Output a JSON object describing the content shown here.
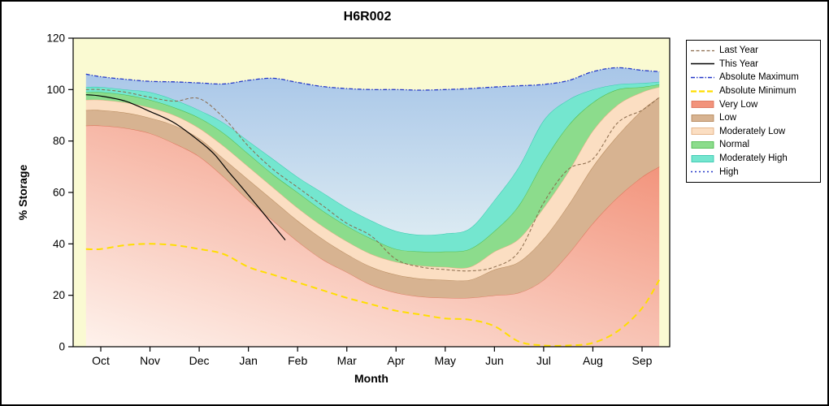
{
  "title": "H6R002",
  "axes": {
    "x_label": "Month",
    "y_label": "% Storage",
    "y_ticks": [
      0,
      20,
      40,
      60,
      80,
      100,
      120
    ]
  },
  "colors": {
    "plot_bg": "#FAFAD2",
    "axis": "#000000"
  },
  "legend": {
    "position": "right",
    "items": [
      {
        "label": "Last Year",
        "type": "line",
        "color": "#8A6A4B",
        "dash": "4,2.5",
        "width": 1
      },
      {
        "label": "This Year",
        "type": "line",
        "color": "#000000",
        "dash": "",
        "width": 1.2
      },
      {
        "label": "Absolute Maximum",
        "type": "line",
        "color": "#2438C8",
        "dash": "5,2,1.5,2",
        "width": 1.3
      },
      {
        "label": "Absolute Minimum",
        "type": "line",
        "color": "#FFDE00",
        "dash": "7,3",
        "width": 2
      },
      {
        "label": "Very Low",
        "type": "fill",
        "color": "#F2937B",
        "edge": "#D96A50"
      },
      {
        "label": "Low",
        "type": "fill",
        "color": "#D7B391",
        "edge": "#B08050"
      },
      {
        "label": "Moderately Low",
        "type": "fill",
        "color": "#FBDEC2",
        "edge": "#E0A878"
      },
      {
        "label": "Normal",
        "type": "fill",
        "color": "#8CDC8C",
        "edge": "#3FB53F"
      },
      {
        "label": "Moderately High",
        "type": "fill",
        "color": "#74E6CF",
        "edge": "#2BC4AA"
      },
      {
        "label": "High",
        "type": "line",
        "color": "#2438C8",
        "dash": "2,3",
        "width": 1.3
      }
    ]
  },
  "chart_data": {
    "type": "area",
    "title": "H6R002",
    "xlabel": "Month",
    "ylabel": "% Storage",
    "ylim": [
      0,
      120
    ],
    "grid": false,
    "legend_position": "right",
    "categories": [
      "Oct",
      "Nov",
      "Dec",
      "Jan",
      "Feb",
      "Mar",
      "Apr",
      "May",
      "Jun",
      "Jul",
      "Aug",
      "Sep"
    ],
    "x": [
      -0.3,
      0,
      0.5,
      1,
      1.5,
      2,
      2.5,
      3,
      3.5,
      4,
      4.5,
      5,
      5.5,
      6,
      6.5,
      7,
      7.5,
      8,
      8.5,
      9,
      9.5,
      10,
      10.5,
      11,
      11.35
    ],
    "bands": [
      {
        "name": "Very Low",
        "fill": "#F2937B",
        "fill2": "#FEF2EC",
        "grad": "diag",
        "edge": "#D96A50",
        "top": [
          86,
          86,
          85,
          83,
          79,
          74,
          66,
          57,
          49,
          41,
          34,
          29,
          24,
          21,
          19.5,
          19,
          19,
          20,
          21,
          26,
          36,
          48,
          58,
          66,
          70
        ]
      },
      {
        "name": "Low",
        "fill": "#D7B391",
        "edge": "#B08050",
        "top": [
          92,
          92,
          91,
          89,
          86,
          81,
          73,
          65,
          57,
          49,
          42,
          36,
          31,
          28,
          26.5,
          26,
          26,
          30,
          33,
          42,
          55,
          70,
          82,
          92,
          97
        ]
      },
      {
        "name": "Moderately Low",
        "fill": "#FBDEC2",
        "edge": "#E0A878",
        "top": [
          96,
          96,
          95,
          93,
          90,
          85,
          78,
          70,
          62,
          54,
          47,
          41,
          36,
          33,
          31.5,
          31,
          31,
          37,
          42,
          54,
          68,
          84,
          94,
          99,
          101
        ]
      },
      {
        "name": "Normal",
        "fill": "#8CDC8C",
        "edge": "#3FB53F",
        "top": [
          99,
          99,
          98,
          96,
          93,
          89,
          83,
          75,
          67,
          60,
          53,
          47,
          42,
          38,
          37,
          37,
          38,
          45,
          55,
          72,
          86,
          95,
          100,
          101,
          102
        ]
      },
      {
        "name": "Moderately High",
        "fill": "#74E6CF",
        "edge": "#2BC4AA",
        "top": [
          101,
          101,
          100,
          99,
          96,
          92,
          87,
          80,
          73,
          66,
          60,
          54,
          49,
          45,
          43.5,
          44,
          46,
          57,
          70,
          88,
          96,
          100,
          102,
          102.5,
          103
        ]
      },
      {
        "name": "High",
        "fill": "#A8C6E8",
        "fill2": "#DBEAF2",
        "grad": "vert",
        "edge": "",
        "top": [
          106,
          105,
          104,
          103.2,
          103,
          102.6,
          102.2,
          103.6,
          104.4,
          102.8,
          101.2,
          100.4,
          100,
          100,
          99.8,
          100,
          100.4,
          101,
          101.5,
          102,
          103.5,
          107,
          108.5,
          107.5,
          107
        ]
      }
    ],
    "lines": [
      {
        "name": "Absolute Minimum",
        "color": "#FFDE00",
        "dash": "8,5",
        "width": 2,
        "values": [
          38,
          38,
          39.5,
          40,
          39.5,
          38,
          36,
          31,
          28,
          25,
          22,
          19,
          16.5,
          14,
          12.5,
          11,
          10.5,
          8,
          2,
          0.5,
          0.5,
          1.5,
          6,
          15,
          26
        ]
      },
      {
        "name": "Last Year",
        "color": "#8A6A4B",
        "dash": "4,2.5",
        "width": 1,
        "values": [
          100,
          100,
          99,
          97,
          95.5,
          96.5,
          89,
          78,
          69,
          62,
          55,
          48,
          43,
          34,
          31,
          30,
          29.5,
          31,
          37,
          56,
          69,
          73,
          87,
          92,
          97
        ]
      },
      {
        "name": "This Year",
        "color": "#000000",
        "dash": "",
        "width": 1.2,
        "x": [
          -0.3,
          0,
          0.5,
          1,
          1.5,
          2,
          2.3,
          2.6,
          3,
          3.3,
          3.6,
          3.75
        ],
        "values": [
          98,
          97.5,
          95.5,
          91.5,
          87,
          80,
          75,
          68,
          59,
          52,
          45,
          41.5
        ]
      },
      {
        "name": "Absolute Maximum",
        "color": "#2438C8",
        "dash": "5,2,1.5,2",
        "width": 1.3,
        "values": [
          106,
          105,
          104,
          103.2,
          103,
          102.6,
          102.2,
          103.6,
          104.4,
          102.8,
          101.2,
          100.4,
          100,
          100,
          99.8,
          100,
          100.4,
          101,
          101.5,
          102,
          103.5,
          107,
          108.5,
          107.5,
          107
        ]
      }
    ]
  }
}
